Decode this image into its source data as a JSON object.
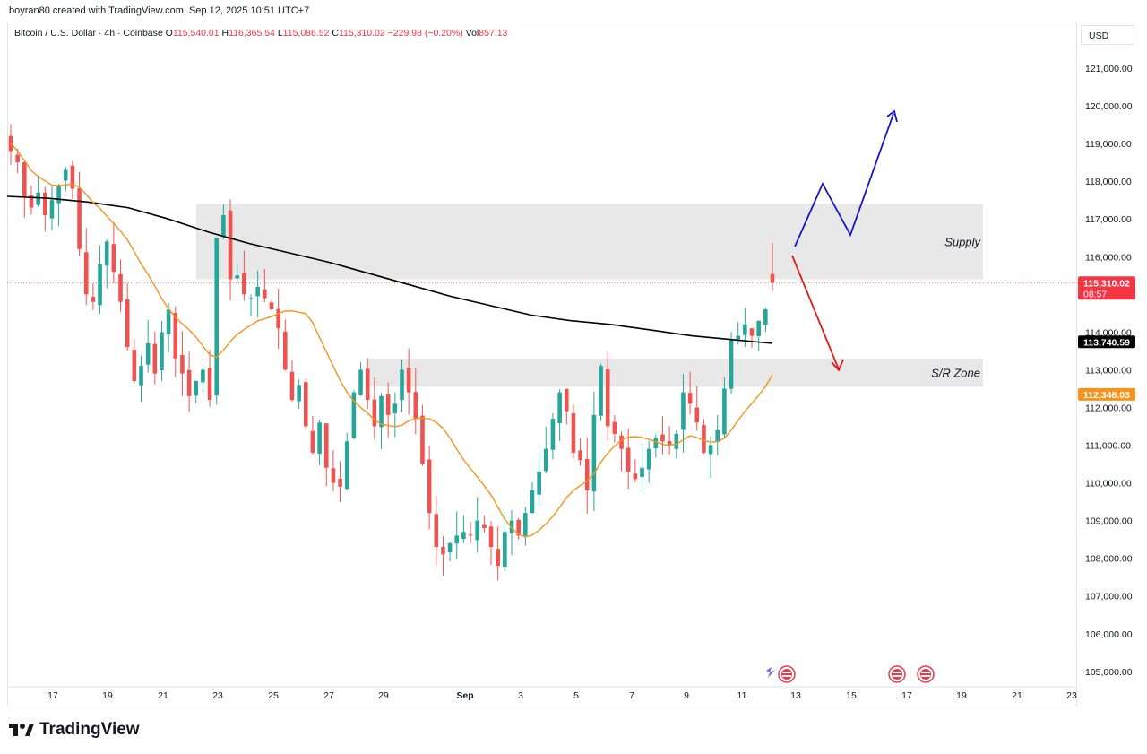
{
  "header": {
    "created_by": "boyran80 created with TradingView.com, Sep 12, 2025 10:51 UTC+7"
  },
  "legend": {
    "symbol": "Bitcoin / U.S. Dollar · 4h · Coinbase",
    "open_label": "O",
    "open": "115,540.01",
    "high_label": "H",
    "high": "116,365.54",
    "low_label": "L",
    "low": "115,086.52",
    "close_label": "C",
    "close": "115,310.02",
    "change": "−229.98 (−0.20%)",
    "vol_label": "Vol",
    "vol": "857.13"
  },
  "currency_button": "USD",
  "brand": {
    "name": "TradingView"
  },
  "colors": {
    "up": "#26a69a",
    "down": "#ef5350",
    "ema_fast": "#f7931a",
    "ema_slow": "#000000",
    "zone": "#e8e8e8",
    "arrow_up": "#1414c8",
    "arrow_down": "#e01b1b"
  },
  "chart_data": {
    "type": "candlestick",
    "ylim": [
      104600,
      122000
    ],
    "y_ticks": [
      "121,000.00",
      "120,000.00",
      "119,000.00",
      "118,000.00",
      "117,000.00",
      "116,000.00",
      "114,000.00",
      "113,000.00",
      "112,000.00",
      "111,000.00",
      "110,000.00",
      "109,000.00",
      "108,000.00",
      "107,000.00",
      "106,000.00",
      "105,000.00"
    ],
    "x_ticks": [
      "17",
      "19",
      "21",
      "23",
      "25",
      "27",
      "29",
      "Sep",
      "3",
      "5",
      "7",
      "9",
      "11",
      "13",
      "15",
      "17",
      "19",
      "21",
      "23"
    ],
    "price_labels": {
      "last": {
        "value": "115,310.02",
        "sub": "08:57"
      },
      "ema_slow": {
        "value": "113,740.59"
      },
      "ema_fast": {
        "value": "112,346.03"
      }
    },
    "zones": [
      {
        "label": "Supply",
        "from": 115400,
        "to": 117400
      },
      {
        "label": "S/R Zone",
        "from": 112550,
        "to": 113300
      }
    ],
    "close_path": [
      118800,
      118500,
      117600,
      117300,
      117700,
      117100,
      117500,
      117900,
      118300,
      117800,
      116200,
      115000,
      114800,
      115800,
      116400,
      115600,
      114800,
      113600,
      112700,
      113100,
      113700,
      112900,
      114000,
      114600,
      113300,
      112900,
      112300,
      112700,
      113000,
      112200,
      116500,
      117100,
      115400,
      115500,
      115000,
      114900,
      115200,
      114900,
      114600,
      114100,
      113000,
      112200,
      112600,
      111500,
      110800,
      111600,
      110400,
      110000,
      109900,
      111100,
      112400,
      113000,
      112200,
      111500,
      112300,
      111800,
      112100,
      113000,
      112400,
      111700,
      110500,
      109200,
      108300,
      108100,
      108400,
      108600,
      108700,
      108600,
      109000,
      108800,
      108300,
      107800,
      108700,
      109000,
      108600,
      109200,
      109800,
      110300,
      110900,
      111700,
      112400,
      111900,
      110800,
      110600,
      109800,
      111800,
      113100,
      111500,
      111300,
      110900,
      110300,
      110100,
      110400,
      110900,
      111200,
      111100,
      111000,
      111300,
      112400,
      112100,
      111600,
      110800,
      111000,
      111400,
      112500,
      113800,
      113900,
      114200,
      113900,
      114300,
      114600,
      115310
    ]
  }
}
